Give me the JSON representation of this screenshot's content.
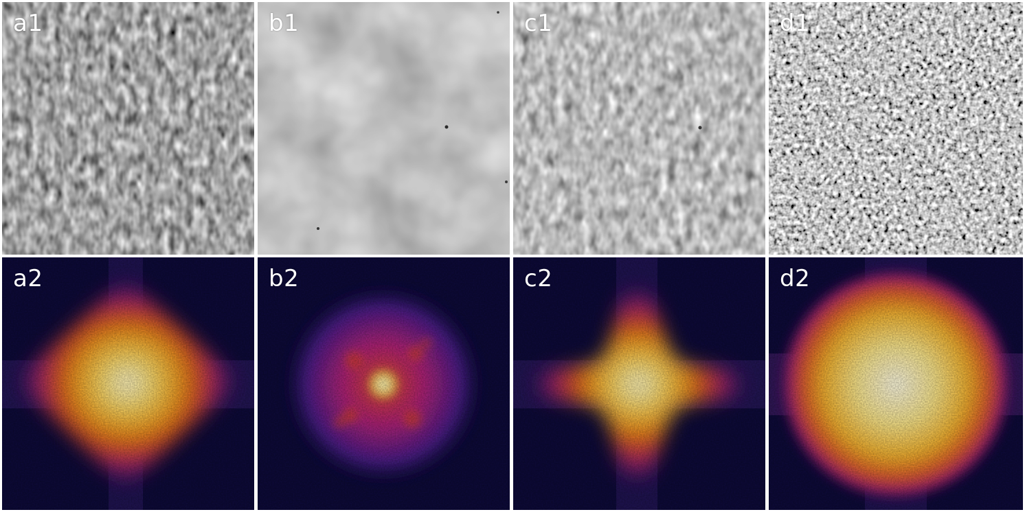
{
  "figure": {
    "panels": [
      {
        "label": "a1",
        "kind": "speckle",
        "variant": "fine-textured"
      },
      {
        "label": "b1",
        "kind": "speckle",
        "variant": "smooth-blurred"
      },
      {
        "label": "c1",
        "kind": "speckle",
        "variant": "fine-textured"
      },
      {
        "label": "d1",
        "kind": "speckle",
        "variant": "high-contrast"
      },
      {
        "label": "a2",
        "kind": "spectrum",
        "variant": "diamond"
      },
      {
        "label": "b2",
        "kind": "spectrum",
        "variant": "small-spot"
      },
      {
        "label": "c2",
        "kind": "spectrum",
        "variant": "cross"
      },
      {
        "label": "d2",
        "kind": "spectrum",
        "variant": "disc"
      }
    ],
    "colors": {
      "separator": "#ffffff",
      "spectrum_background": "#0d0a3a",
      "spectrum_mid": "#b0207a",
      "spectrum_hot": "#f6a41b",
      "spectrum_peak": "#fffde8"
    }
  }
}
